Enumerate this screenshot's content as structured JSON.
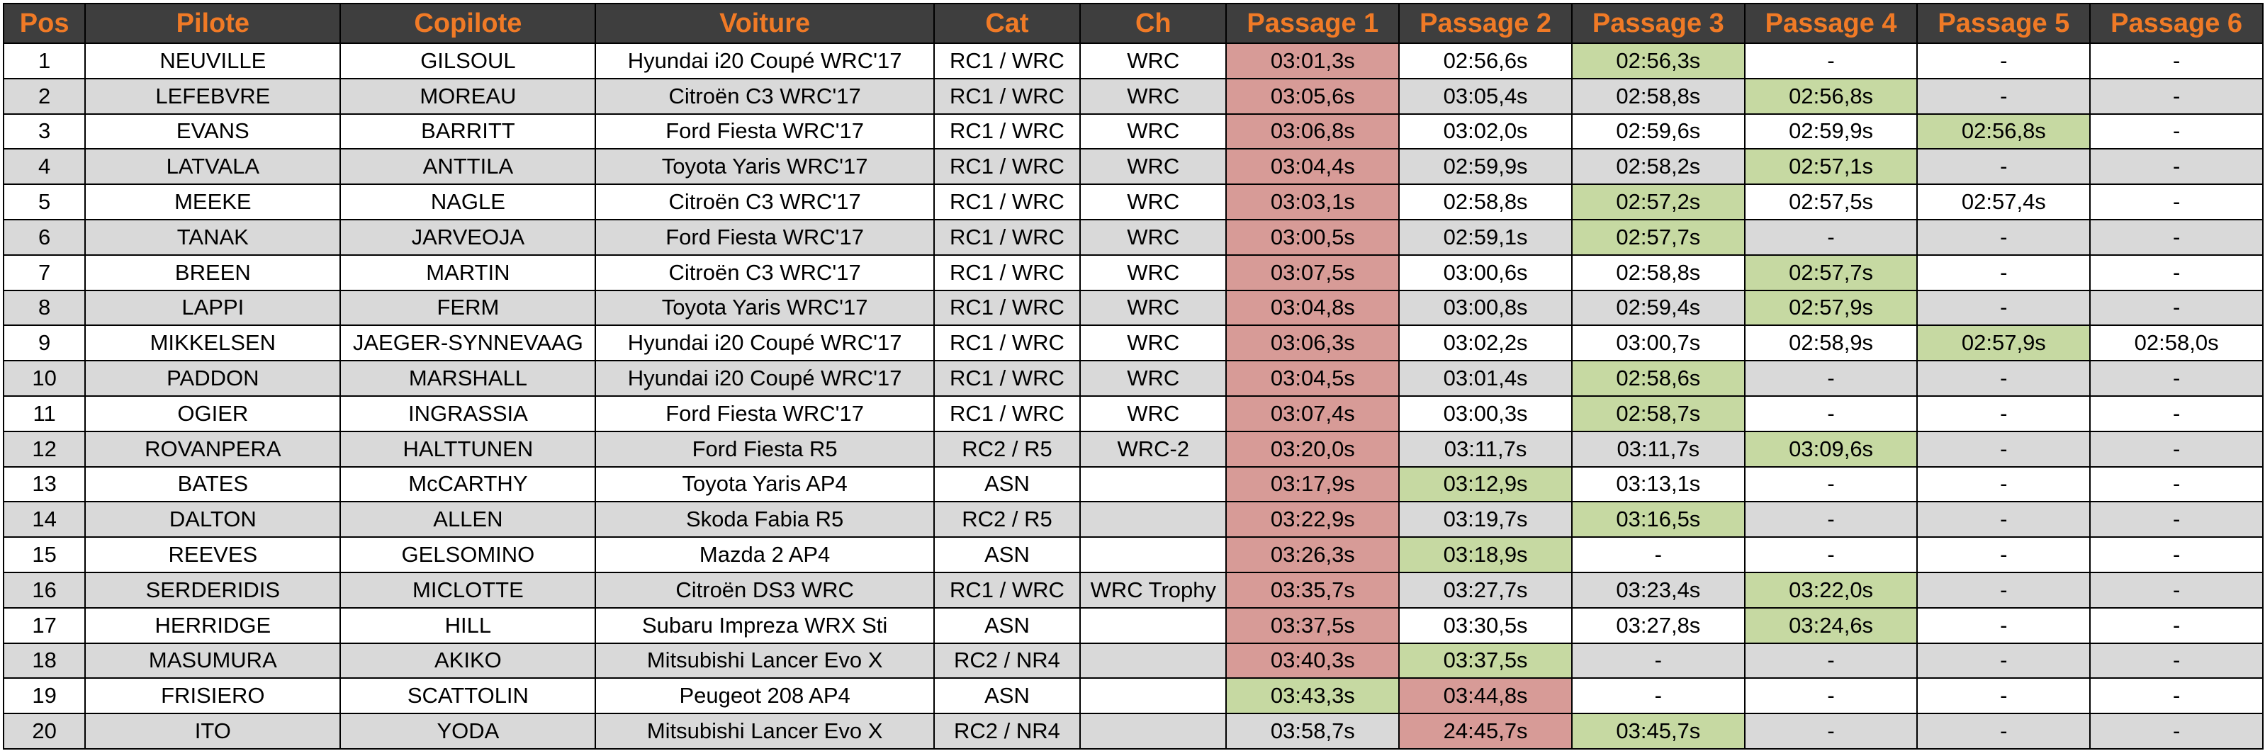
{
  "colors": {
    "header_bg": "#3e3e3e",
    "header_text": "#f07a26",
    "row_alt": "#d9d9d9",
    "cell_red": "#d79b97",
    "cell_green": "#c6d9a2"
  },
  "table": {
    "headers": [
      "Pos",
      "Pilote",
      "Copilote",
      "Voiture",
      "Cat",
      "Ch",
      "Passage 1",
      "Passage 2",
      "Passage 3",
      "Passage 4",
      "Passage 5",
      "Passage 6"
    ],
    "rows": [
      {
        "cells": [
          "1",
          "NEUVILLE",
          "GILSOUL",
          "Hyundai i20 Coupé WRC'17",
          "RC1 / WRC",
          "WRC",
          "03:01,3s",
          "02:56,6s",
          "02:56,3s",
          "-",
          "-",
          "-"
        ],
        "hl": [
          "",
          "",
          "",
          "",
          "",
          "",
          "red",
          "",
          "green",
          "",
          "",
          ""
        ]
      },
      {
        "cells": [
          "2",
          "LEFEBVRE",
          "MOREAU",
          "Citroën C3 WRC'17",
          "RC1 / WRC",
          "WRC",
          "03:05,6s",
          "03:05,4s",
          "02:58,8s",
          "02:56,8s",
          "-",
          "-"
        ],
        "hl": [
          "",
          "",
          "",
          "",
          "",
          "",
          "red",
          "",
          "",
          "green",
          "",
          ""
        ]
      },
      {
        "cells": [
          "3",
          "EVANS",
          "BARRITT",
          "Ford Fiesta WRC'17",
          "RC1 / WRC",
          "WRC",
          "03:06,8s",
          "03:02,0s",
          "02:59,6s",
          "02:59,9s",
          "02:56,8s",
          "-"
        ],
        "hl": [
          "",
          "",
          "",
          "",
          "",
          "",
          "red",
          "",
          "",
          "",
          "green",
          ""
        ]
      },
      {
        "cells": [
          "4",
          "LATVALA",
          "ANTTILA",
          "Toyota Yaris WRC'17",
          "RC1 / WRC",
          "WRC",
          "03:04,4s",
          "02:59,9s",
          "02:58,2s",
          "02:57,1s",
          "-",
          "-"
        ],
        "hl": [
          "",
          "",
          "",
          "",
          "",
          "",
          "red",
          "",
          "",
          "green",
          "",
          ""
        ]
      },
      {
        "cells": [
          "5",
          "MEEKE",
          "NAGLE",
          "Citroën C3 WRC'17",
          "RC1 / WRC",
          "WRC",
          "03:03,1s",
          "02:58,8s",
          "02:57,2s",
          "02:57,5s",
          "02:57,4s",
          "-"
        ],
        "hl": [
          "",
          "",
          "",
          "",
          "",
          "",
          "red",
          "",
          "green",
          "",
          "",
          ""
        ]
      },
      {
        "cells": [
          "6",
          "TANAK",
          "JARVEOJA",
          "Ford Fiesta WRC'17",
          "RC1 / WRC",
          "WRC",
          "03:00,5s",
          "02:59,1s",
          "02:57,7s",
          "-",
          "-",
          "-"
        ],
        "hl": [
          "",
          "",
          "",
          "",
          "",
          "",
          "red",
          "",
          "green",
          "",
          "",
          ""
        ]
      },
      {
        "cells": [
          "7",
          "BREEN",
          "MARTIN",
          "Citroën C3 WRC'17",
          "RC1 / WRC",
          "WRC",
          "03:07,5s",
          "03:00,6s",
          "02:58,8s",
          "02:57,7s",
          "-",
          "-"
        ],
        "hl": [
          "",
          "",
          "",
          "",
          "",
          "",
          "red",
          "",
          "",
          "green",
          "",
          ""
        ]
      },
      {
        "cells": [
          "8",
          "LAPPI",
          "FERM",
          "Toyota Yaris WRC'17",
          "RC1 / WRC",
          "WRC",
          "03:04,8s",
          "03:00,8s",
          "02:59,4s",
          "02:57,9s",
          "-",
          "-"
        ],
        "hl": [
          "",
          "",
          "",
          "",
          "",
          "",
          "red",
          "",
          "",
          "green",
          "",
          ""
        ]
      },
      {
        "cells": [
          "9",
          "MIKKELSEN",
          "JAEGER-SYNNEVAAG",
          "Hyundai i20 Coupé WRC'17",
          "RC1 / WRC",
          "WRC",
          "03:06,3s",
          "03:02,2s",
          "03:00,7s",
          "02:58,9s",
          "02:57,9s",
          "02:58,0s"
        ],
        "hl": [
          "",
          "",
          "",
          "",
          "",
          "",
          "red",
          "",
          "",
          "",
          "green",
          ""
        ]
      },
      {
        "cells": [
          "10",
          "PADDON",
          "MARSHALL",
          "Hyundai i20 Coupé WRC'17",
          "RC1 / WRC",
          "WRC",
          "03:04,5s",
          "03:01,4s",
          "02:58,6s",
          "-",
          "-",
          "-"
        ],
        "hl": [
          "",
          "",
          "",
          "",
          "",
          "",
          "red",
          "",
          "green",
          "",
          "",
          ""
        ]
      },
      {
        "cells": [
          "11",
          "OGIER",
          "INGRASSIA",
          "Ford Fiesta WRC'17",
          "RC1 / WRC",
          "WRC",
          "03:07,4s",
          "03:00,3s",
          "02:58,7s",
          "-",
          "-",
          "-"
        ],
        "hl": [
          "",
          "",
          "",
          "",
          "",
          "",
          "red",
          "",
          "green",
          "",
          "",
          ""
        ]
      },
      {
        "cells": [
          "12",
          "ROVANPERA",
          "HALTTUNEN",
          "Ford Fiesta R5",
          "RC2 / R5",
          "WRC-2",
          "03:20,0s",
          "03:11,7s",
          "03:11,7s",
          "03:09,6s",
          "-",
          "-"
        ],
        "hl": [
          "",
          "",
          "",
          "",
          "",
          "",
          "red",
          "",
          "",
          "green",
          "",
          ""
        ]
      },
      {
        "cells": [
          "13",
          "BATES",
          "McCARTHY",
          "Toyota Yaris AP4",
          "ASN",
          "",
          "03:17,9s",
          "03:12,9s",
          "03:13,1s",
          "-",
          "-",
          "-"
        ],
        "hl": [
          "",
          "",
          "",
          "",
          "",
          "",
          "red",
          "green",
          "",
          "",
          "",
          ""
        ]
      },
      {
        "cells": [
          "14",
          "DALTON",
          "ALLEN",
          "Skoda Fabia R5",
          "RC2 / R5",
          "",
          "03:22,9s",
          "03:19,7s",
          "03:16,5s",
          "-",
          "-",
          "-"
        ],
        "hl": [
          "",
          "",
          "",
          "",
          "",
          "",
          "red",
          "",
          "green",
          "",
          "",
          ""
        ]
      },
      {
        "cells": [
          "15",
          "REEVES",
          "GELSOMINO",
          "Mazda 2 AP4",
          "ASN",
          "",
          "03:26,3s",
          "03:18,9s",
          "-",
          "-",
          "-",
          "-"
        ],
        "hl": [
          "",
          "",
          "",
          "",
          "",
          "",
          "red",
          "green",
          "",
          "",
          "",
          ""
        ]
      },
      {
        "cells": [
          "16",
          "SERDERIDIS",
          "MICLOTTE",
          "Citroën DS3 WRC",
          "RC1 / WRC",
          "WRC Trophy",
          "03:35,7s",
          "03:27,7s",
          "03:23,4s",
          "03:22,0s",
          "-",
          "-"
        ],
        "hl": [
          "",
          "",
          "",
          "",
          "",
          "",
          "red",
          "",
          "",
          "green",
          "",
          ""
        ]
      },
      {
        "cells": [
          "17",
          "HERRIDGE",
          "HILL",
          "Subaru Impreza WRX Sti",
          "ASN",
          "",
          "03:37,5s",
          "03:30,5s",
          "03:27,8s",
          "03:24,6s",
          "-",
          "-"
        ],
        "hl": [
          "",
          "",
          "",
          "",
          "",
          "",
          "red",
          "",
          "",
          "green",
          "",
          ""
        ]
      },
      {
        "cells": [
          "18",
          "MASUMURA",
          "AKIKO",
          "Mitsubishi Lancer Evo X",
          "RC2 / NR4",
          "",
          "03:40,3s",
          "03:37,5s",
          "-",
          "-",
          "-",
          "-"
        ],
        "hl": [
          "",
          "",
          "",
          "",
          "",
          "",
          "red",
          "green",
          "",
          "",
          "",
          ""
        ]
      },
      {
        "cells": [
          "19",
          "FRISIERO",
          "SCATTOLIN",
          "Peugeot  208 AP4",
          "ASN",
          "",
          "03:43,3s",
          "03:44,8s",
          "-",
          "-",
          "-",
          "-"
        ],
        "hl": [
          "",
          "",
          "",
          "",
          "",
          "",
          "green",
          "red",
          "",
          "",
          "",
          ""
        ]
      },
      {
        "cells": [
          "20",
          "ITO",
          "YODA",
          "Mitsubishi Lancer Evo X",
          "RC2 / NR4",
          "",
          "03:58,7s",
          "24:45,7s",
          "03:45,7s",
          "-",
          "-",
          "-"
        ],
        "hl": [
          "",
          "",
          "",
          "",
          "",
          "",
          "",
          "red",
          "green",
          "",
          "",
          ""
        ]
      }
    ]
  }
}
